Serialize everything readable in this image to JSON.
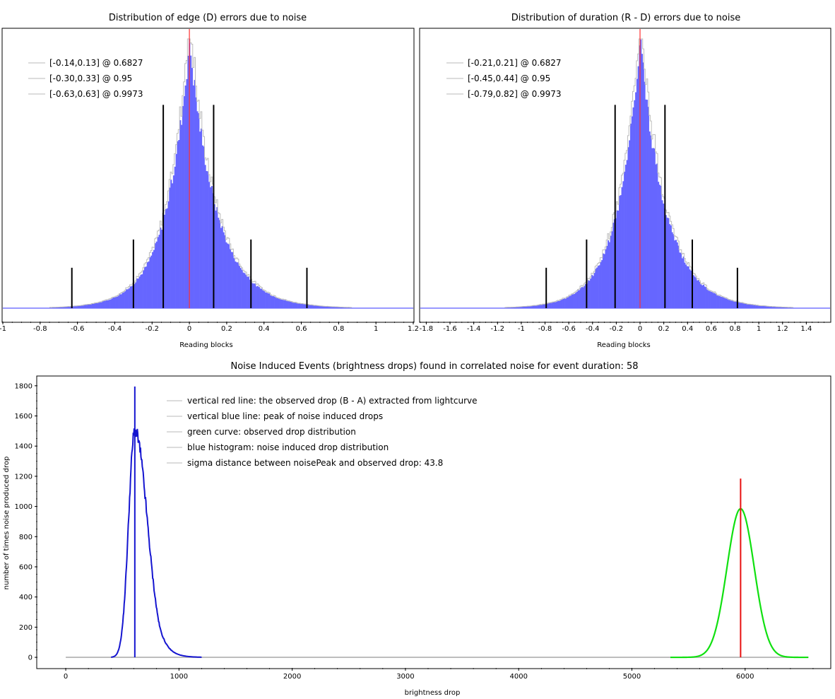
{
  "colors": {
    "hist_fill": "#6666ff",
    "hist_outline": "#bcbcbc",
    "red_line": "#ff3030",
    "confidence_bars": "#000000",
    "baseline": "#3333ff",
    "legend_line": "#d0d0d0",
    "noise_curve": "#1515d0",
    "observed_curve": "#10e010",
    "observed_line": "#e81010",
    "grey_baseline": "#bdbdbd"
  },
  "chart_data": [
    {
      "type": "histogram",
      "title": "Distribution of edge (D) errors due to noise",
      "xlabel": "Reading blocks",
      "ylabel": "",
      "xlim": [
        -1.0,
        1.2
      ],
      "x_ticks": [
        "-1",
        "-0.8",
        "-0.6",
        "-0.4",
        "-0.2",
        "0",
        "0.2",
        "0.4",
        "0.6",
        "0.8",
        "1",
        "1.2"
      ],
      "x_tick_values": [
        -1.0,
        -0.8,
        -0.6,
        -0.4,
        -0.2,
        0.0,
        0.2,
        0.4,
        0.6,
        0.8,
        1.0,
        1.2
      ],
      "y_axis_visible": false,
      "grid": false,
      "distribution": {
        "peak_x": 0.0,
        "peak_relative_height": 1.0,
        "scale_left": 0.125,
        "scale_right": 0.145,
        "noise": 0.05
      },
      "reference_line_x": 0.0,
      "confidence_intervals": [
        {
          "low": -0.14,
          "high": 0.13,
          "level": 0.6827,
          "relative_height": 0.755
        },
        {
          "low": -0.3,
          "high": 0.33,
          "level": 0.95,
          "relative_height": 0.255
        },
        {
          "low": -0.63,
          "high": 0.63,
          "level": 0.9973,
          "relative_height": 0.15
        }
      ],
      "legend_position": "top-left",
      "legend": [
        "[-0.14,0.13] @ 0.6827",
        "[-0.30,0.33] @ 0.95",
        "[-0.63,0.63] @ 0.9973"
      ]
    },
    {
      "type": "histogram",
      "title": "Distribution of duration (R - D) errors due to noise",
      "xlabel": "Reading blocks",
      "ylabel": "",
      "xlim": [
        -1.85,
        1.6
      ],
      "x_ticks": [
        "-1.8",
        "-1.6",
        "-1.4",
        "-1.2",
        "-1",
        "-0.8",
        "-0.6",
        "-0.4",
        "-0.2",
        "0",
        "0.2",
        "0.4",
        "0.6",
        "0.8",
        "1",
        "1.2",
        "1.4"
      ],
      "x_tick_values": [
        -1.8,
        -1.6,
        -1.4,
        -1.2,
        -1.0,
        -0.8,
        -0.6,
        -0.4,
        -0.2,
        0.0,
        0.2,
        0.4,
        0.6,
        0.8,
        1.0,
        1.2,
        1.4
      ],
      "y_axis_visible": false,
      "grid": false,
      "distribution": {
        "peak_x": 0.0,
        "peak_relative_height": 1.0,
        "scale_left": 0.19,
        "scale_right": 0.215,
        "noise": 0.05
      },
      "reference_line_x": 0.0,
      "confidence_intervals": [
        {
          "low": -0.21,
          "high": 0.21,
          "level": 0.6827,
          "relative_height": 0.755
        },
        {
          "low": -0.45,
          "high": 0.44,
          "level": 0.95,
          "relative_height": 0.255
        },
        {
          "low": -0.79,
          "high": 0.82,
          "level": 0.9973,
          "relative_height": 0.15
        }
      ],
      "legend_position": "top-left",
      "legend": [
        "[-0.21,0.21] @ 0.6827",
        "[-0.45,0.44] @ 0.95",
        "[-0.79,0.82] @ 0.9973"
      ]
    },
    {
      "type": "line",
      "title": "Noise Induced Events (brightness drops) found in correlated noise for event duration: 58",
      "xlabel": "brightness drop",
      "ylabel": "number of times noise produced drop",
      "xlim": [
        -250,
        6750
      ],
      "ylim": [
        -70,
        1860
      ],
      "x_ticks": [
        "0",
        "1000",
        "2000",
        "3000",
        "4000",
        "5000",
        "6000"
      ],
      "x_tick_values": [
        0,
        1000,
        2000,
        3000,
        4000,
        5000,
        6000
      ],
      "y_ticks": [
        "0",
        "200",
        "400",
        "600",
        "800",
        "1000",
        "1200",
        "1400",
        "1600",
        "1800"
      ],
      "y_tick_values": [
        0,
        200,
        400,
        600,
        800,
        1000,
        1200,
        1400,
        1600,
        1800
      ],
      "grid": false,
      "series": [
        {
          "name": "blue histogram: noise induced drop distribution",
          "peak_x": 610,
          "peak_y": 1500,
          "spread_left": 55,
          "spread_right": 110,
          "x_start": 400,
          "x_end": 1200
        },
        {
          "name": "green curve: observed drop distribution",
          "peak_x": 5960,
          "peak_y": 985,
          "sigma": 120,
          "x_start": 5340,
          "x_end": 6560
        }
      ],
      "noise_peak_line": {
        "x": 610,
        "y": 1795
      },
      "observed_drop_line": {
        "x": 5960,
        "y": 1185
      },
      "baseline_extent": [
        0,
        6560
      ],
      "legend_position": "top-center",
      "legend": [
        "vertical red line: the observed drop (B - A) extracted from lightcurve",
        "vertical blue line: peak of noise induced drops",
        "green curve: observed drop distribution",
        "blue histogram: noise induced drop distribution",
        "sigma distance between noisePeak and observed drop: 43.8"
      ]
    }
  ]
}
